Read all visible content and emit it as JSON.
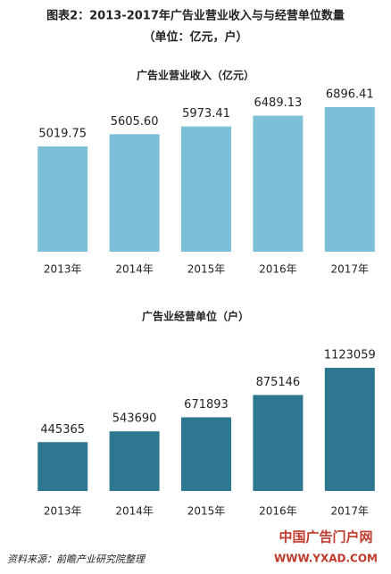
{
  "title": "图表2：2013-2017年广告业营业收入与与经营单位数量",
  "subtitle": "（单位：亿元，户）",
  "chart_data": [
    {
      "type": "bar",
      "title": "广告业营业收入（亿元）",
      "categories": [
        "2013年",
        "2014年",
        "2015年",
        "2016年",
        "2017年"
      ],
      "values": [
        5019.75,
        5605.6,
        5973.41,
        6489.13,
        6896.41
      ],
      "value_labels": [
        "5019.75",
        "5605.60",
        "5973.41",
        "6489.13",
        "6896.41"
      ],
      "color": "#7cc0d8"
    },
    {
      "type": "bar",
      "title": "广告业经营单位（户）",
      "categories": [
        "2013年",
        "2014年",
        "2015年",
        "2016年",
        "2017年"
      ],
      "values": [
        445365,
        543690,
        671893,
        875146,
        1123059
      ],
      "color": "#2d7890"
    }
  ],
  "source": "资料来源：前瞻产业研究院整理",
  "watermark": {
    "name": "中国广告门户网",
    "url": "WWW.YXAD.COM"
  }
}
